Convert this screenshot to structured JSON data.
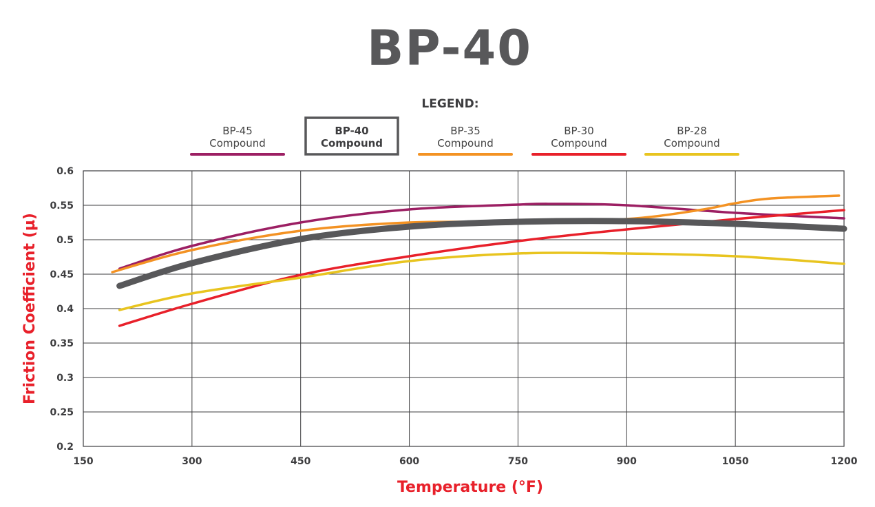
{
  "chart_data": {
    "type": "line",
    "title": "BP-40",
    "legend_title": "LEGEND:",
    "legend_placement": "top",
    "xlabel": "Temperature (°F)",
    "ylabel": "Friction Coefficient (µ)",
    "xlim": [
      150,
      1200
    ],
    "ylim": [
      0.2,
      0.6
    ],
    "grid": true,
    "x_ticks": [
      "150",
      "300",
      "450",
      "600",
      "750",
      "900",
      "1050",
      "1200"
    ],
    "y_ticks": [
      "0.2",
      "0.25",
      "0.3",
      "0.35",
      "0.4",
      "0.45",
      "0.5",
      "0.55",
      "0.6"
    ],
    "series": [
      {
        "name": "BP-45",
        "label2": "Compound",
        "color": "#9c1f63",
        "highlight": false,
        "x": [
          200,
          300,
          450,
          600,
          750,
          800,
          900,
          1050,
          1200
        ],
        "y": [
          0.458,
          0.491,
          0.525,
          0.544,
          0.551,
          0.552,
          0.55,
          0.539,
          0.531
        ]
      },
      {
        "name": "BP-35",
        "label2": "Compound",
        "color": "#f39223",
        "highlight": false,
        "x": [
          190,
          300,
          450,
          600,
          750,
          900,
          1000,
          1050,
          1100,
          1193
        ],
        "y": [
          0.453,
          0.485,
          0.513,
          0.525,
          0.526,
          0.53,
          0.543,
          0.553,
          0.56,
          0.564
        ]
      },
      {
        "name": "BP-30",
        "label2": "Compound",
        "color": "#e8202a",
        "highlight": false,
        "x": [
          200,
          300,
          450,
          600,
          750,
          900,
          1050,
          1200
        ],
        "y": [
          0.375,
          0.407,
          0.449,
          0.476,
          0.498,
          0.515,
          0.53,
          0.543
        ]
      },
      {
        "name": "BP-28",
        "label2": "Compound",
        "color": "#e8c41f",
        "highlight": false,
        "x": [
          200,
          300,
          450,
          600,
          750,
          900,
          1050,
          1200
        ],
        "y": [
          0.398,
          0.422,
          0.445,
          0.469,
          0.48,
          0.48,
          0.476,
          0.465
        ]
      },
      {
        "name": "BP-40",
        "label2": "Compound",
        "color": "#58585a",
        "highlight": true,
        "x": [
          200,
          300,
          450,
          600,
          750,
          900,
          1050,
          1200
        ],
        "y": [
          0.433,
          0.466,
          0.501,
          0.519,
          0.526,
          0.527,
          0.523,
          0.516
        ]
      }
    ],
    "legend_order": [
      "BP-45",
      "BP-40",
      "BP-35",
      "BP-30",
      "BP-28"
    ]
  }
}
